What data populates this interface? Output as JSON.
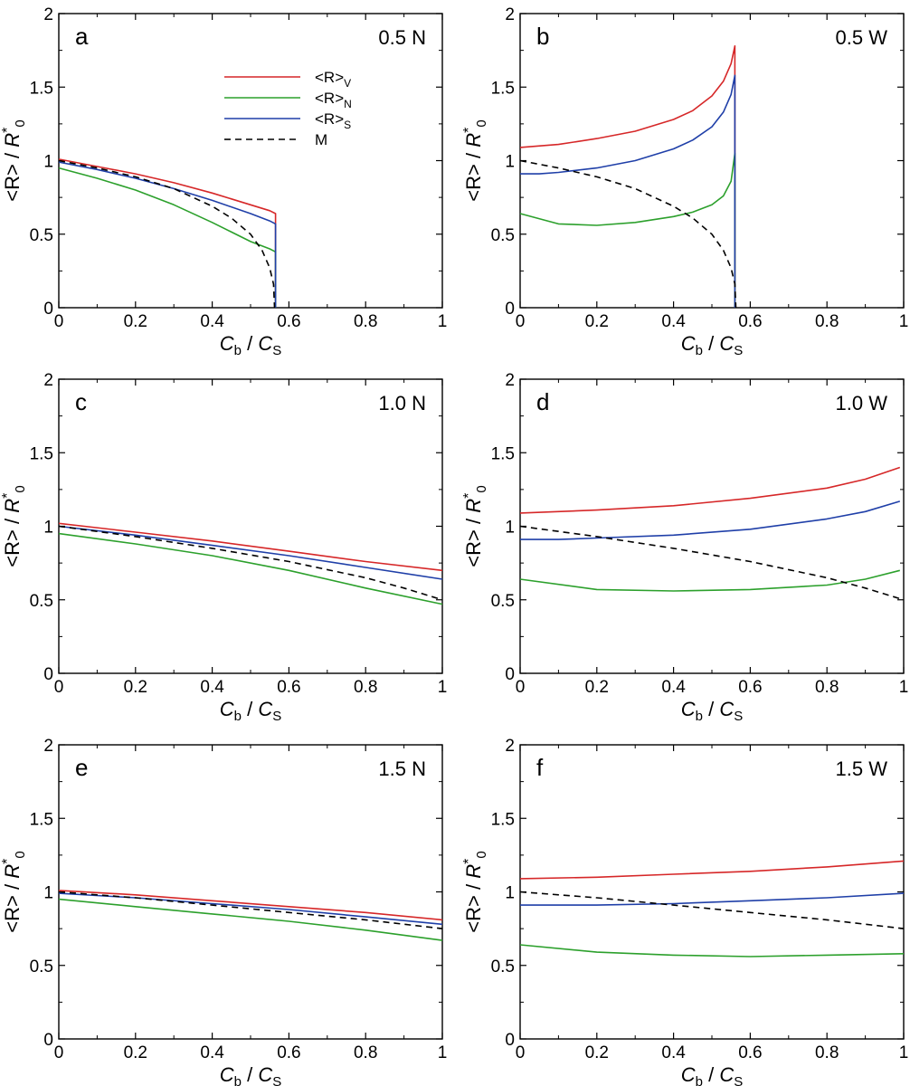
{
  "chart_data": [
    {
      "type": "line",
      "panel_label": "a",
      "tag": "0.5 N",
      "xlabel": "Cb / CS",
      "ylabel": "<R> / R*0",
      "xlim": [
        0,
        1
      ],
      "ylim": [
        0,
        2
      ],
      "xticks": [
        0,
        0.2,
        0.4,
        0.6,
        0.8,
        1
      ],
      "yticks": [
        0,
        0.5,
        1,
        1.5,
        2
      ],
      "xtick_labels": [
        "0",
        "0.2",
        "0.4",
        "0.6",
        "0.8",
        "1"
      ],
      "ytick_labels": [
        "0",
        "0.5",
        "1",
        "1.5",
        "2"
      ],
      "legend": {
        "placement": "top-center",
        "entries": [
          {
            "base": "<R>",
            "sub": "V",
            "series": "V"
          },
          {
            "base": "<R>",
            "sub": "N",
            "series": "N"
          },
          {
            "base": "<R>",
            "sub": "S",
            "series": "S"
          },
          {
            "base": "M",
            "sub": "",
            "series": "M"
          }
        ]
      },
      "series": [
        {
          "key": "V",
          "color": "#d62728",
          "dash": "",
          "x": [
            0,
            0.1,
            0.2,
            0.3,
            0.4,
            0.5,
            0.55,
            0.565,
            0.565
          ],
          "y": [
            1.01,
            0.96,
            0.91,
            0.85,
            0.78,
            0.7,
            0.66,
            0.64,
            0
          ]
        },
        {
          "key": "N",
          "color": "#2ca02c",
          "dash": "",
          "x": [
            0,
            0.1,
            0.2,
            0.3,
            0.4,
            0.5,
            0.55,
            0.565,
            0.565
          ],
          "y": [
            0.95,
            0.88,
            0.8,
            0.7,
            0.58,
            0.45,
            0.4,
            0.38,
            0
          ]
        },
        {
          "key": "S",
          "color": "#1f3fa8",
          "dash": "",
          "x": [
            0,
            0.1,
            0.2,
            0.3,
            0.4,
            0.5,
            0.55,
            0.565,
            0.565
          ],
          "y": [
            0.99,
            0.94,
            0.88,
            0.81,
            0.73,
            0.64,
            0.59,
            0.57,
            0
          ]
        },
        {
          "key": "M",
          "color": "#000000",
          "dash": "7,5",
          "x": [
            0,
            0.1,
            0.2,
            0.3,
            0.4,
            0.45,
            0.5,
            0.53,
            0.55,
            0.56,
            0.5625
          ],
          "y": [
            1.0,
            0.95,
            0.89,
            0.81,
            0.69,
            0.61,
            0.5,
            0.39,
            0.27,
            0.16,
            0.0
          ]
        }
      ]
    },
    {
      "type": "line",
      "panel_label": "b",
      "tag": "0.5 W",
      "xlabel": "Cb / CS",
      "ylabel": "<R> / R*0",
      "xlim": [
        0,
        1
      ],
      "ylim": [
        0,
        2
      ],
      "xticks": [
        0,
        0.2,
        0.4,
        0.6,
        0.8,
        1
      ],
      "yticks": [
        0,
        0.5,
        1,
        1.5,
        2
      ],
      "xtick_labels": [
        "0",
        "0.2",
        "0.4",
        "0.6",
        "0.8",
        "1"
      ],
      "ytick_labels": [
        "0",
        "0.5",
        "1",
        "1.5",
        "2"
      ],
      "series": [
        {
          "key": "V",
          "color": "#d62728",
          "dash": "",
          "x": [
            0,
            0.1,
            0.2,
            0.3,
            0.4,
            0.45,
            0.5,
            0.53,
            0.55,
            0.56,
            0.56
          ],
          "y": [
            1.09,
            1.11,
            1.15,
            1.2,
            1.28,
            1.34,
            1.44,
            1.54,
            1.66,
            1.78,
            0
          ]
        },
        {
          "key": "N",
          "color": "#2ca02c",
          "dash": "",
          "x": [
            0,
            0.1,
            0.2,
            0.3,
            0.4,
            0.45,
            0.5,
            0.53,
            0.55,
            0.56,
            0.56
          ],
          "y": [
            0.64,
            0.57,
            0.56,
            0.58,
            0.62,
            0.65,
            0.7,
            0.76,
            0.86,
            1.05,
            0
          ]
        },
        {
          "key": "S",
          "color": "#1f3fa8",
          "dash": "",
          "x": [
            0,
            0.05,
            0.1,
            0.2,
            0.3,
            0.4,
            0.45,
            0.5,
            0.53,
            0.55,
            0.56,
            0.56
          ],
          "y": [
            0.91,
            0.91,
            0.92,
            0.95,
            1.0,
            1.08,
            1.14,
            1.23,
            1.33,
            1.45,
            1.58,
            0
          ]
        },
        {
          "key": "M",
          "color": "#000000",
          "dash": "7,5",
          "x": [
            0,
            0.1,
            0.2,
            0.3,
            0.4,
            0.45,
            0.5,
            0.53,
            0.55,
            0.56,
            0.5625
          ],
          "y": [
            1.0,
            0.95,
            0.89,
            0.81,
            0.69,
            0.61,
            0.5,
            0.39,
            0.27,
            0.16,
            0.0
          ]
        }
      ]
    },
    {
      "type": "line",
      "panel_label": "c",
      "tag": "1.0 N",
      "xlabel": "Cb / CS",
      "ylabel": "<R> / R*0",
      "xlim": [
        0,
        1
      ],
      "ylim": [
        0,
        2
      ],
      "xticks": [
        0,
        0.2,
        0.4,
        0.6,
        0.8,
        1
      ],
      "yticks": [
        0,
        0.5,
        1,
        1.5,
        2
      ],
      "xtick_labels": [
        "0",
        "0.2",
        "0.4",
        "0.6",
        "0.8",
        "1"
      ],
      "ytick_labels": [
        "0",
        "0.5",
        "1",
        "1.5",
        "2"
      ],
      "series": [
        {
          "key": "V",
          "color": "#d62728",
          "dash": "",
          "x": [
            0,
            0.2,
            0.4,
            0.6,
            0.8,
            1.0
          ],
          "y": [
            1.02,
            0.96,
            0.9,
            0.83,
            0.76,
            0.7
          ]
        },
        {
          "key": "N",
          "color": "#2ca02c",
          "dash": "",
          "x": [
            0,
            0.2,
            0.4,
            0.6,
            0.8,
            1.0
          ],
          "y": [
            0.95,
            0.88,
            0.8,
            0.7,
            0.58,
            0.47
          ]
        },
        {
          "key": "S",
          "color": "#1f3fa8",
          "dash": "",
          "x": [
            0,
            0.2,
            0.4,
            0.6,
            0.8,
            1.0
          ],
          "y": [
            1.0,
            0.94,
            0.87,
            0.8,
            0.72,
            0.64
          ]
        },
        {
          "key": "M",
          "color": "#000000",
          "dash": "7,5",
          "x": [
            0,
            0.2,
            0.4,
            0.6,
            0.8,
            0.9,
            1.0
          ],
          "y": [
            1.0,
            0.93,
            0.85,
            0.76,
            0.65,
            0.58,
            0.5
          ]
        }
      ]
    },
    {
      "type": "line",
      "panel_label": "d",
      "tag": "1.0 W",
      "xlabel": "Cb / CS",
      "ylabel": "<R> / R*0",
      "xlim": [
        0,
        1
      ],
      "ylim": [
        0,
        2
      ],
      "xticks": [
        0,
        0.2,
        0.4,
        0.6,
        0.8,
        1
      ],
      "yticks": [
        0,
        0.5,
        1,
        1.5,
        2
      ],
      "xtick_labels": [
        "0",
        "0.2",
        "0.4",
        "0.6",
        "0.8",
        "1"
      ],
      "ytick_labels": [
        "0",
        "0.5",
        "1",
        "1.5",
        "2"
      ],
      "series": [
        {
          "key": "V",
          "color": "#d62728",
          "dash": "",
          "x": [
            0,
            0.2,
            0.4,
            0.6,
            0.8,
            0.9,
            0.99
          ],
          "y": [
            1.09,
            1.11,
            1.14,
            1.19,
            1.26,
            1.32,
            1.4
          ]
        },
        {
          "key": "N",
          "color": "#2ca02c",
          "dash": "",
          "x": [
            0,
            0.2,
            0.4,
            0.6,
            0.8,
            0.9,
            0.99
          ],
          "y": [
            0.64,
            0.57,
            0.56,
            0.57,
            0.6,
            0.64,
            0.7
          ]
        },
        {
          "key": "S",
          "color": "#1f3fa8",
          "dash": "",
          "x": [
            0,
            0.1,
            0.2,
            0.4,
            0.6,
            0.8,
            0.9,
            0.99
          ],
          "y": [
            0.91,
            0.91,
            0.92,
            0.94,
            0.98,
            1.05,
            1.1,
            1.17
          ]
        },
        {
          "key": "M",
          "color": "#000000",
          "dash": "7,5",
          "x": [
            0,
            0.2,
            0.4,
            0.6,
            0.8,
            0.9,
            1.0
          ],
          "y": [
            1.0,
            0.93,
            0.85,
            0.76,
            0.65,
            0.58,
            0.5
          ]
        }
      ]
    },
    {
      "type": "line",
      "panel_label": "e",
      "tag": "1.5 N",
      "xlabel": "Cb / CS",
      "ylabel": "<R> / R*0",
      "xlim": [
        0,
        1
      ],
      "ylim": [
        0,
        2
      ],
      "xticks": [
        0,
        0.2,
        0.4,
        0.6,
        0.8,
        1
      ],
      "yticks": [
        0,
        0.5,
        1,
        1.5,
        2
      ],
      "xtick_labels": [
        "0",
        "0.2",
        "0.4",
        "0.6",
        "0.8",
        "1"
      ],
      "ytick_labels": [
        "0",
        "0.5",
        "1",
        "1.5",
        "2"
      ],
      "series": [
        {
          "key": "V",
          "color": "#d62728",
          "dash": "",
          "x": [
            0,
            0.2,
            0.4,
            0.6,
            0.8,
            1.0
          ],
          "y": [
            1.01,
            0.98,
            0.94,
            0.9,
            0.86,
            0.81
          ]
        },
        {
          "key": "N",
          "color": "#2ca02c",
          "dash": "",
          "x": [
            0,
            0.2,
            0.4,
            0.6,
            0.8,
            1.0
          ],
          "y": [
            0.95,
            0.9,
            0.85,
            0.8,
            0.74,
            0.67
          ]
        },
        {
          "key": "S",
          "color": "#1f3fa8",
          "dash": "",
          "x": [
            0,
            0.2,
            0.4,
            0.6,
            0.8,
            1.0
          ],
          "y": [
            0.99,
            0.96,
            0.92,
            0.88,
            0.83,
            0.78
          ]
        },
        {
          "key": "M",
          "color": "#000000",
          "dash": "7,5",
          "x": [
            0,
            0.2,
            0.4,
            0.6,
            0.8,
            1.0
          ],
          "y": [
            1.0,
            0.96,
            0.91,
            0.86,
            0.81,
            0.75
          ]
        }
      ]
    },
    {
      "type": "line",
      "panel_label": "f",
      "tag": "1.5 W",
      "xlabel": "Cb / CS",
      "ylabel": "<R> / R*0",
      "xlim": [
        0,
        1
      ],
      "ylim": [
        0,
        2
      ],
      "xticks": [
        0,
        0.2,
        0.4,
        0.6,
        0.8,
        1
      ],
      "yticks": [
        0,
        0.5,
        1,
        1.5,
        2
      ],
      "xtick_labels": [
        "0",
        "0.2",
        "0.4",
        "0.6",
        "0.8",
        "1"
      ],
      "ytick_labels": [
        "0",
        "0.5",
        "1",
        "1.5",
        "2"
      ],
      "series": [
        {
          "key": "V",
          "color": "#d62728",
          "dash": "",
          "x": [
            0,
            0.2,
            0.4,
            0.6,
            0.8,
            1.0
          ],
          "y": [
            1.09,
            1.1,
            1.12,
            1.14,
            1.17,
            1.21
          ]
        },
        {
          "key": "N",
          "color": "#2ca02c",
          "dash": "",
          "x": [
            0,
            0.2,
            0.4,
            0.6,
            0.8,
            1.0
          ],
          "y": [
            0.64,
            0.59,
            0.57,
            0.56,
            0.57,
            0.58
          ]
        },
        {
          "key": "S",
          "color": "#1f3fa8",
          "dash": "",
          "x": [
            0,
            0.1,
            0.2,
            0.4,
            0.6,
            0.8,
            1.0
          ],
          "y": [
            0.91,
            0.91,
            0.91,
            0.92,
            0.94,
            0.96,
            0.99
          ]
        },
        {
          "key": "M",
          "color": "#000000",
          "dash": "7,5",
          "x": [
            0,
            0.2,
            0.4,
            0.6,
            0.8,
            1.0
          ],
          "y": [
            1.0,
            0.96,
            0.91,
            0.86,
            0.81,
            0.75
          ]
        }
      ]
    }
  ]
}
